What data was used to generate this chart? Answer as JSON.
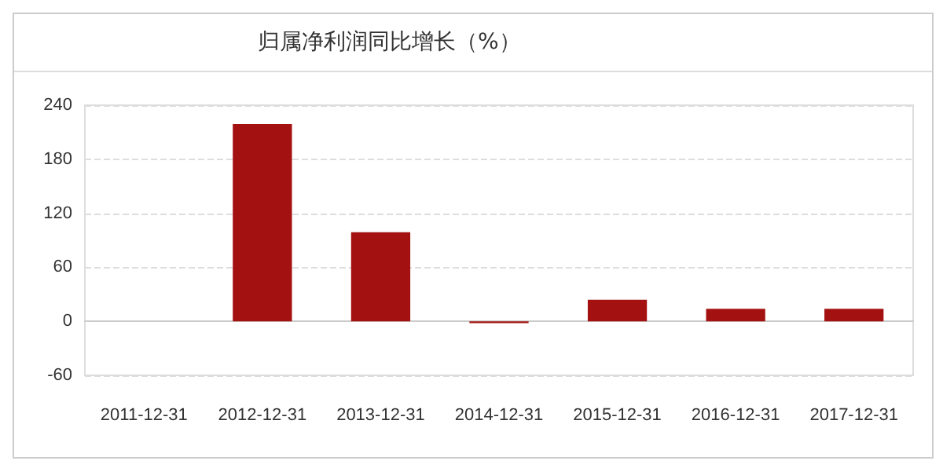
{
  "chart_data": {
    "type": "bar",
    "title": "归属净利润同比增长（%）",
    "categories": [
      "2011-12-31",
      "2012-12-31",
      "2013-12-31",
      "2014-12-31",
      "2015-12-31",
      "2016-12-31",
      "2017-12-31"
    ],
    "values": [
      null,
      219,
      99,
      -2,
      24,
      14,
      14
    ],
    "color": "#a31111",
    "ylim": [
      -60,
      240
    ],
    "yticks": [
      -60,
      0,
      60,
      120,
      180,
      240
    ],
    "grid": "y"
  }
}
